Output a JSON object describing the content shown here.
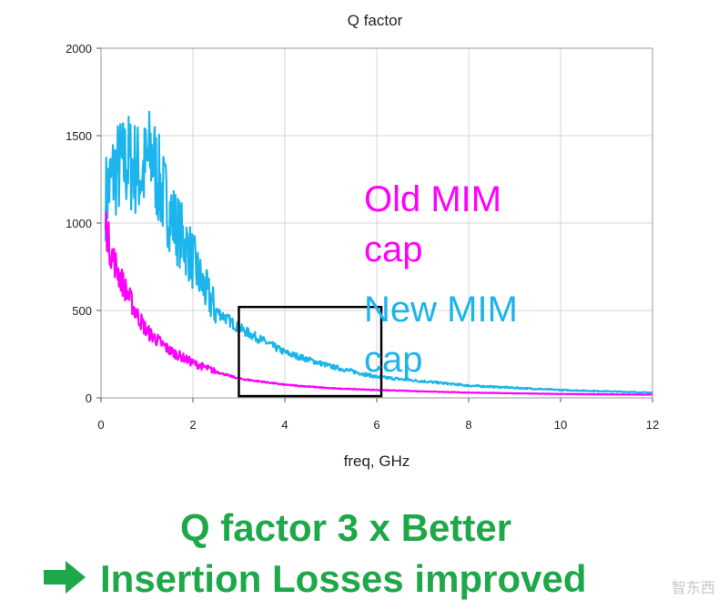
{
  "chart_data": {
    "type": "line",
    "title": "Q factor",
    "xlabel": "freq, GHz",
    "ylabel": "",
    "xlim": [
      0,
      12
    ],
    "ylim": [
      0,
      2000
    ],
    "x_ticks": [
      0,
      2,
      4,
      6,
      8,
      10,
      12
    ],
    "y_ticks": [
      0,
      500,
      1000,
      1500,
      2000
    ],
    "grid": true,
    "series": [
      {
        "name": "Old MIM cap",
        "color": "#ff00ff",
        "x": [
          0.1,
          0.2,
          0.4,
          0.6,
          0.8,
          1.0,
          1.5,
          2.0,
          2.5,
          3.0,
          4.0,
          5.0,
          6.0,
          8.0,
          10.0,
          12.0
        ],
        "y": [
          1000,
          850,
          700,
          580,
          470,
          380,
          270,
          200,
          150,
          110,
          75,
          55,
          45,
          30,
          22,
          18
        ]
      },
      {
        "name": "New MIM cap",
        "color": "#1cb4ec",
        "x": [
          0.1,
          0.3,
          0.6,
          0.9,
          1.1,
          1.3,
          1.6,
          1.9,
          2.2,
          2.5,
          3.0,
          3.5,
          4.0,
          5.0,
          6.0,
          8.0,
          10.0,
          12.0
        ],
        "y": [
          1150,
          1300,
          1350,
          1280,
          1400,
          1200,
          1000,
          850,
          650,
          500,
          400,
          330,
          260,
          180,
          120,
          70,
          45,
          30
        ]
      }
    ],
    "annotations": [
      {
        "type": "box",
        "x": [
          3,
          6.1
        ],
        "y": [
          10,
          520
        ]
      }
    ]
  },
  "legend": {
    "old_line1": "Old MIM",
    "old_line2": "cap",
    "new_line1": "New MIM",
    "new_line2": "cap"
  },
  "headline": {
    "line1": "Q factor 3 x Better",
    "line2": "Insertion Losses improved"
  },
  "watermark": "智东西",
  "colors": {
    "old": "#ff00ff",
    "new": "#1cb4ec",
    "headline": "#1fa84a",
    "box": "#000000"
  }
}
